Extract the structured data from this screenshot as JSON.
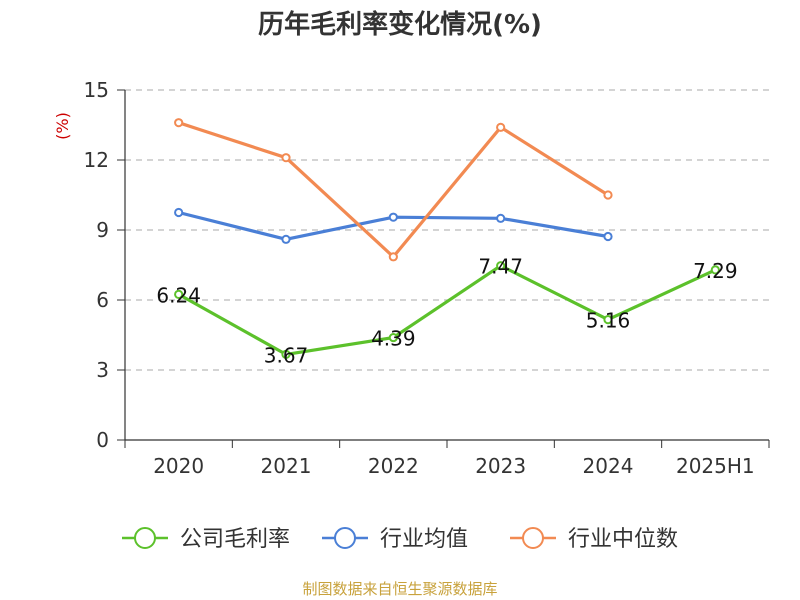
{
  "chart_data": {
    "type": "line",
    "title": "历年毛利率变化情况(%)",
    "ylabel": "(%)",
    "categories": [
      "2020",
      "2021",
      "2022",
      "2023",
      "2024",
      "2025H1"
    ],
    "ylim": [
      0,
      15
    ],
    "yticks": [
      0,
      3,
      6,
      9,
      12,
      15
    ],
    "grid": true,
    "legend_position": "bottom",
    "series": [
      {
        "name": "公司毛利率",
        "color": "#5cc12b",
        "values": [
          6.24,
          3.67,
          4.39,
          7.47,
          5.16,
          7.29
        ],
        "labels": [
          "6.24",
          "3.67",
          "4.39",
          "7.47",
          "5.16",
          "7.29"
        ]
      },
      {
        "name": "行业均值",
        "color": "#4a7fd6",
        "values": [
          9.75,
          8.6,
          9.55,
          9.5,
          8.72,
          null
        ]
      },
      {
        "name": "行业中位数",
        "color": "#f28a52",
        "values": [
          13.6,
          12.1,
          7.85,
          13.4,
          10.5,
          null
        ]
      }
    ],
    "source": "制图数据来自恒生聚源数据库"
  }
}
